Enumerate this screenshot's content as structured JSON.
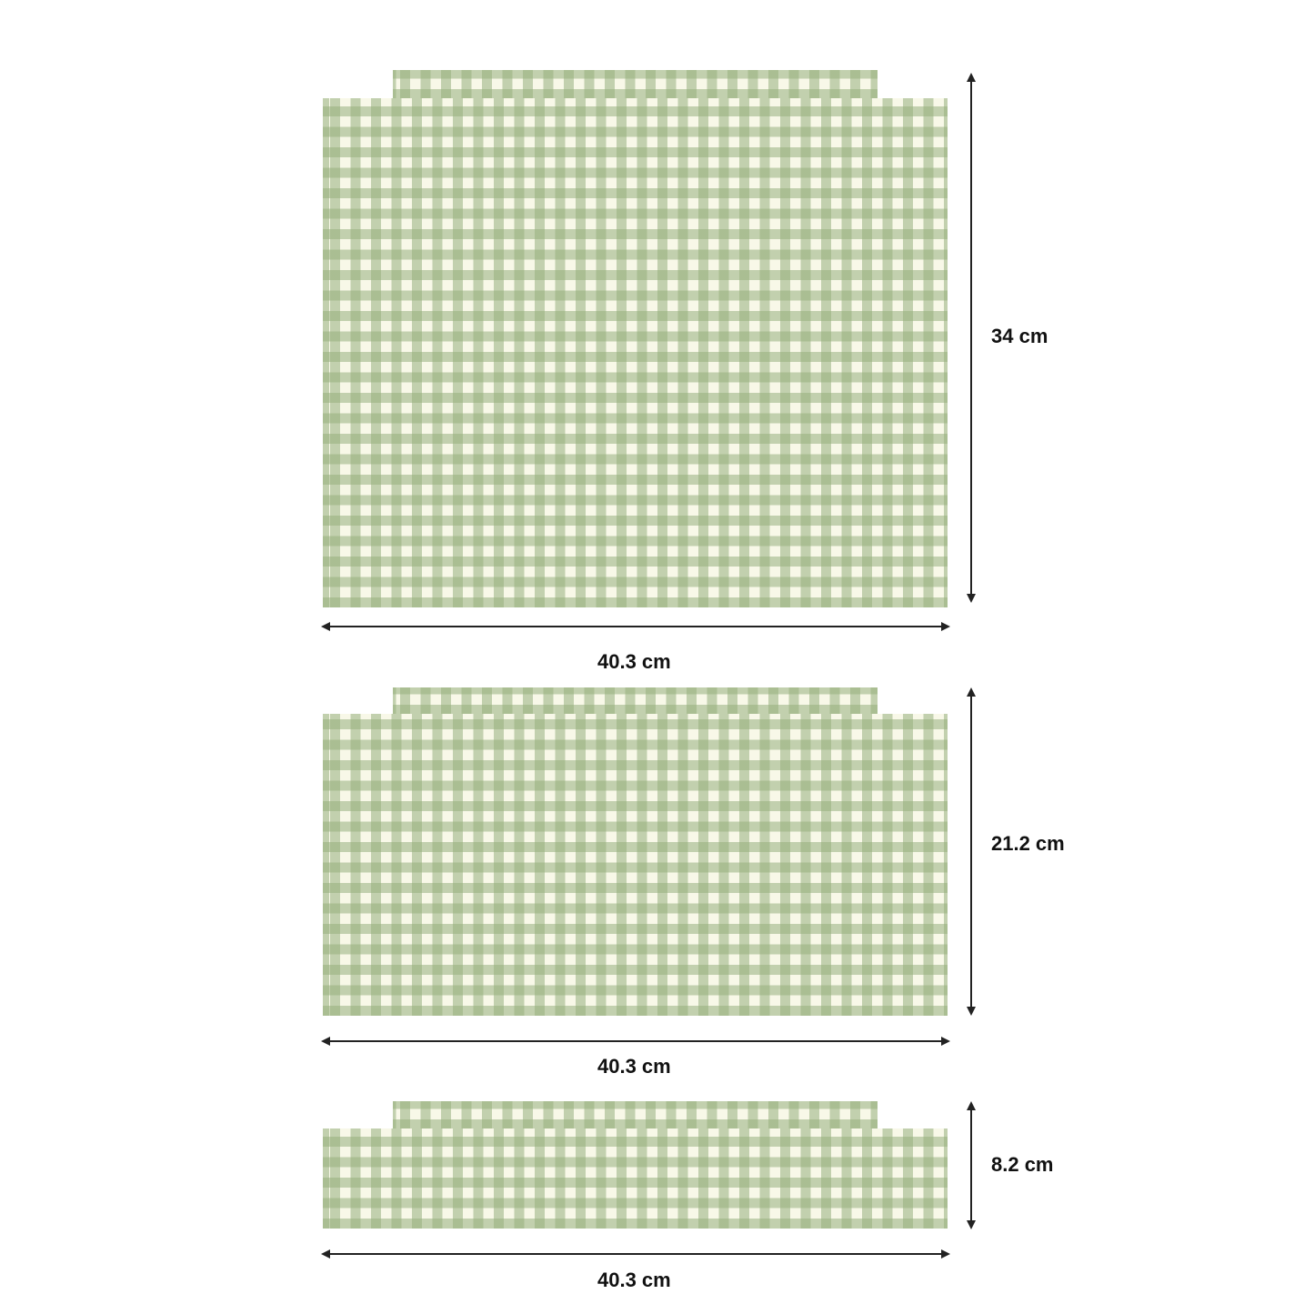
{
  "colors": {
    "background": "#f8f8e8",
    "stripe": "#b8c8a3",
    "overlap": "#9fb38a"
  },
  "panels": [
    {
      "width_label": "40.3 cm",
      "height_label": "34 cm"
    },
    {
      "width_label": "40.3 cm",
      "height_label": "21.2 cm"
    },
    {
      "width_label": "40.3 cm",
      "height_label": "8.2 cm"
    }
  ]
}
